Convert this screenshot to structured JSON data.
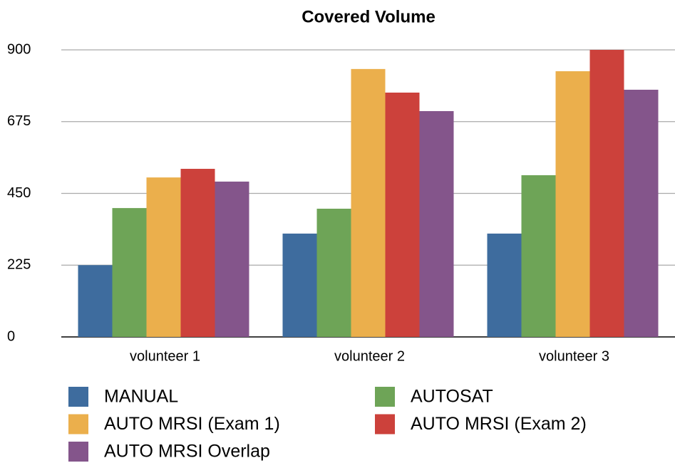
{
  "chart_data": {
    "type": "bar",
    "title": "Covered Volume",
    "categories": [
      "volunteer 1",
      "volunteer 2",
      "volunteer 3"
    ],
    "series": [
      {
        "name": "MANUAL",
        "color": "#3e6c9e",
        "values": [
          225,
          324,
          324
        ]
      },
      {
        "name": "AUTOSAT",
        "color": "#6ea457",
        "values": [
          404,
          402,
          507
        ]
      },
      {
        "name": "AUTO MRSI (Exam 1)",
        "color": "#ebaf4c",
        "values": [
          500,
          840,
          833
        ]
      },
      {
        "name": "AUTO MRSI (Exam 2)",
        "color": "#cc413b",
        "values": [
          527,
          766,
          900
        ]
      },
      {
        "name": "AUTO MRSI Overlap",
        "color": "#84558b",
        "values": [
          487,
          708,
          775
        ]
      }
    ],
    "ylim": [
      0,
      900
    ],
    "yticks": [
      0,
      225,
      450,
      675,
      900
    ],
    "grid": true
  }
}
